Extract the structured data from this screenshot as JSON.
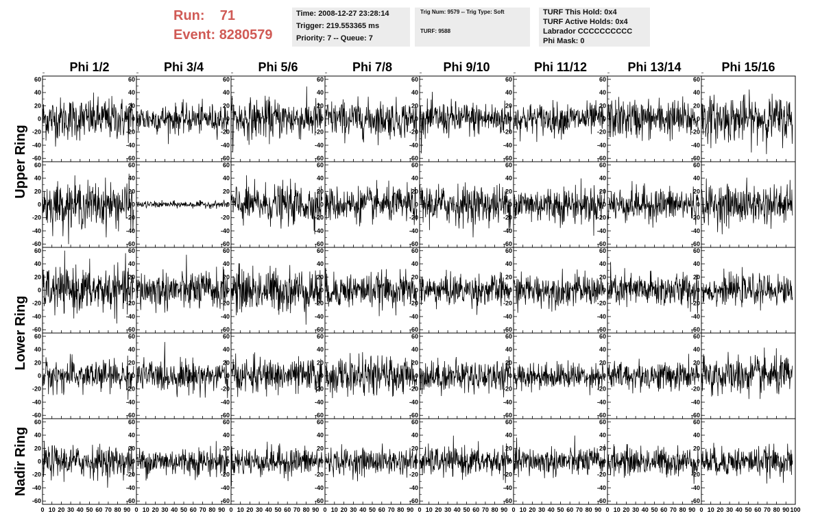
{
  "header": {
    "run_label": "Run:",
    "run_value": "71",
    "event_label": "Event:",
    "event_value": "8280579",
    "time_line": "Time: 2008-12-27 23:28:14",
    "trigger_line": "Trigger: 219.553365 ms",
    "priority_line": "Priority: 7 -- Queue: 7",
    "trig_line": "Trig Num: 9579 -- Trig Type: Soft",
    "turf_line": "TURF: 9588",
    "turf_hold_line": "TURF This Hold: 0x4",
    "turf_active_line": "TURF Active Holds: 0x4",
    "labrador_line": "Labrador CCCCCCCCCC",
    "phi_mask_line": "Phi Mask: 0"
  },
  "colors": {
    "accent": "#d05a55",
    "info_bg": "#ececec",
    "trace": "#000000"
  },
  "chart_data": {
    "type": "line",
    "columns": [
      "Phi 1/2",
      "Phi 3/4",
      "Phi 5/6",
      "Phi 7/8",
      "Phi 9/10",
      "Phi 11/12",
      "Phi 13/14",
      "Phi 15/16"
    ],
    "ring_labels": [
      "Upper Ring",
      "Lower Ring",
      "Nadir Ring"
    ],
    "ring_rows": [
      [
        0,
        1
      ],
      [
        2,
        3
      ],
      [
        4
      ]
    ],
    "rows": 5,
    "ylim": [
      -65,
      65
    ],
    "y_ticks": [
      -60,
      -40,
      -20,
      0,
      20,
      40,
      60
    ],
    "y_tick_labels": [
      "-60",
      "-40",
      "-20",
      "0",
      "20",
      "40",
      "60"
    ],
    "xlim": [
      0,
      100
    ],
    "x_ticks": [
      0,
      10,
      20,
      30,
      40,
      50,
      60,
      70,
      80,
      90,
      100
    ],
    "x_tick_labels": [
      "0",
      "10",
      "20",
      "30",
      "40",
      "50",
      "60",
      "70",
      "80",
      "90",
      "100"
    ],
    "x_tick_labels_last_column": [
      "0",
      "10",
      "20",
      "30",
      "40",
      "50",
      "60",
      "70",
      "80",
      "90",
      "100"
    ],
    "samples_per_trace": 260,
    "amplitude": [
      [
        16,
        11,
        15,
        14,
        13,
        12,
        15,
        17
      ],
      [
        17,
        2.5,
        15,
        13,
        15,
        14,
        13,
        15
      ],
      [
        17,
        15,
        17,
        13,
        12,
        12,
        13,
        11
      ],
      [
        12,
        12,
        13,
        14,
        12,
        10,
        11,
        15
      ],
      [
        12,
        11,
        11,
        10,
        11,
        11,
        11,
        11
      ]
    ]
  }
}
